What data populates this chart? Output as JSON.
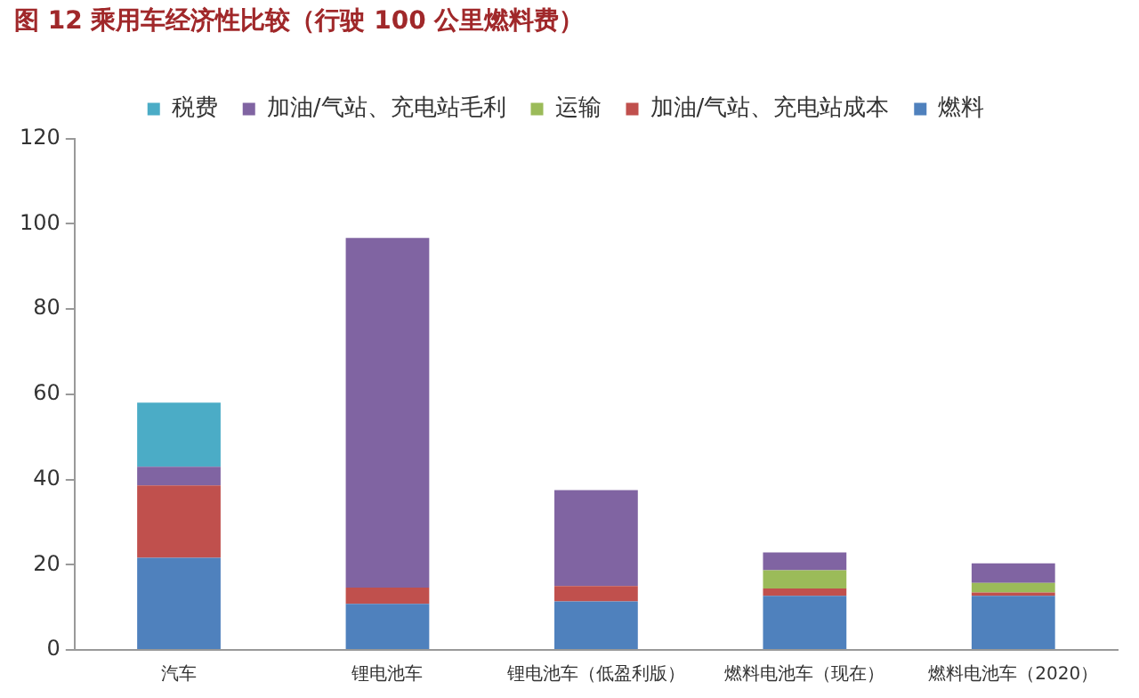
{
  "chart_data": {
    "type": "bar",
    "title": "图 12 乘用车经济性比较（行驶 100 公里燃料费）",
    "stacked": true,
    "categories": [
      "汽车",
      "锂电池车",
      "锂电池车（低盈利版）",
      "燃料电池车（现在）",
      "燃料电池车（2020）"
    ],
    "series": [
      {
        "name": "燃料",
        "color": "#4f81bd",
        "values": [
          21.6,
          10.8,
          11.4,
          12.7,
          12.7
        ]
      },
      {
        "name": "加油/气站、充电站成本",
        "color": "#c0504d",
        "values": [
          17,
          3.8,
          3.6,
          1.7,
          0.8
        ]
      },
      {
        "name": "运输",
        "color": "#9bbb59",
        "values": [
          0,
          0,
          0,
          4.3,
          2.2
        ]
      },
      {
        "name": "加油/气站、充电站毛利",
        "color": "#8064a2",
        "values": [
          4.4,
          82.1,
          22.5,
          4.2,
          4.6
        ]
      },
      {
        "name": "税费",
        "color": "#4bacc6",
        "values": [
          15,
          null,
          null,
          null,
          null
        ]
      }
    ],
    "ylim": [
      0,
      120
    ],
    "yticks": [
      0,
      20,
      40,
      60,
      80,
      100,
      120
    ],
    "grid": false,
    "legend": "top"
  }
}
